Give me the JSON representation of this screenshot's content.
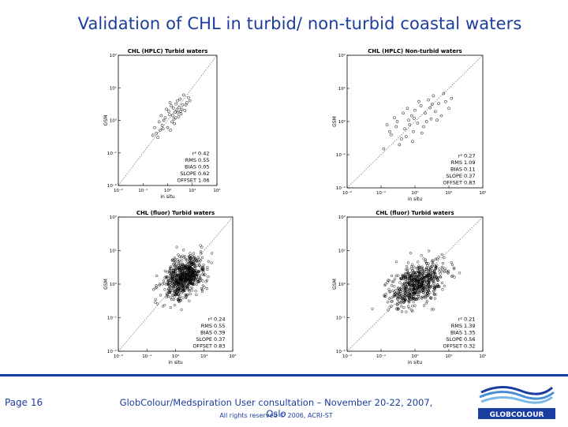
{
  "slide": {
    "title": "Validation of CHL in turbid/ non-turbid coastal waters"
  },
  "footer": {
    "page_label": "Page 16",
    "event": "GlobColour/Medspiration User consultation – November 20-22, 2007, Oslo",
    "rights": "All rights reserved © 2006, ACRI-ST",
    "logo_text": "GLOBCOLOUR",
    "brand_color": "#1c3da0"
  },
  "chart_data": [
    {
      "type": "scatter",
      "title": "CHL (HPLC) Turbid waters",
      "xlabel": "in situ",
      "ylabel": "GSM",
      "log_scale": true,
      "xlim": [
        0.01,
        100
      ],
      "ylim": [
        0.01,
        100
      ],
      "x_ticks": [
        "10⁻²",
        "10⁻¹",
        "10⁰",
        "10¹",
        "10²"
      ],
      "y_ticks": [
        "10⁻²",
        "10⁻¹",
        "10⁰",
        "10¹",
        "10²"
      ],
      "stats": [
        {
          "label": "r²",
          "value": "0.42"
        },
        {
          "label": "RMS",
          "value": "0.55"
        },
        {
          "label": "BIAS",
          "value": "0.05"
        },
        {
          "label": "SLOPE",
          "value": "0.62"
        },
        {
          "label": "OFFSET",
          "value": "1.06"
        }
      ],
      "points": [
        [
          1.2,
          1.5
        ],
        [
          2.0,
          1.8
        ],
        [
          1.5,
          0.9
        ],
        [
          3.0,
          2.5
        ],
        [
          0.8,
          1.2
        ],
        [
          2.5,
          4.0
        ],
        [
          1.0,
          0.6
        ],
        [
          4.0,
          3.0
        ],
        [
          0.9,
          2.2
        ],
        [
          1.8,
          1.1
        ],
        [
          3.5,
          1.6
        ],
        [
          0.6,
          0.7
        ],
        [
          2.2,
          3.2
        ],
        [
          5.0,
          2.0
        ],
        [
          1.4,
          2.8
        ],
        [
          0.7,
          1.0
        ],
        [
          2.8,
          1.3
        ],
        [
          1.1,
          1.9
        ],
        [
          6.0,
          3.5
        ],
        [
          0.5,
          0.5
        ],
        [
          1.6,
          1.4
        ],
        [
          2.4,
          2.1
        ],
        [
          0.35,
          0.4
        ],
        [
          3.2,
          4.5
        ],
        [
          1.9,
          0.8
        ],
        [
          0.45,
          0.9
        ],
        [
          7.0,
          5.0
        ],
        [
          1.3,
          0.5
        ],
        [
          0.3,
          0.6
        ],
        [
          2.6,
          1.7
        ],
        [
          4.5,
          6.0
        ],
        [
          0.25,
          0.35
        ],
        [
          1.7,
          2.4
        ],
        [
          3.8,
          2.2
        ],
        [
          0.55,
          1.4
        ],
        [
          0.4,
          0.3
        ],
        [
          8.0,
          4.0
        ],
        [
          2.1,
          1.2
        ],
        [
          0.65,
          0.55
        ],
        [
          5.5,
          3.0
        ],
        [
          1.25,
          3.5
        ],
        [
          3.3,
          1.9
        ]
      ],
      "one_to_one_line": true
    },
    {
      "type": "scatter",
      "title": "CHL (HPLC) Non-turbid waters",
      "xlabel": "in situ",
      "ylabel": "GSM",
      "log_scale": true,
      "xlim": [
        0.01,
        100
      ],
      "ylim": [
        0.01,
        100
      ],
      "x_ticks": [
        "10⁻²",
        "10⁻¹",
        "10⁰",
        "10¹",
        "10²"
      ],
      "y_ticks": [
        "10⁻²",
        "10⁻¹",
        "10⁰",
        "10¹",
        "10²"
      ],
      "stats": [
        {
          "label": "r²",
          "value": "0.27"
        },
        {
          "label": "RMS",
          "value": "1.09"
        },
        {
          "label": "BIAS",
          "value": "0.11"
        },
        {
          "label": "SLOPE",
          "value": "0.37"
        },
        {
          "label": "OFFSET",
          "value": "0.83"
        }
      ],
      "points": [
        [
          0.3,
          1.0
        ],
        [
          0.5,
          0.6
        ],
        [
          0.8,
          1.5
        ],
        [
          1.2,
          0.9
        ],
        [
          2.0,
          1.8
        ],
        [
          3.0,
          1.2
        ],
        [
          0.2,
          0.4
        ],
        [
          0.15,
          0.8
        ],
        [
          0.6,
          2.5
        ],
        [
          1.5,
          3.0
        ],
        [
          4.0,
          2.0
        ],
        [
          0.4,
          0.3
        ],
        [
          0.9,
          0.5
        ],
        [
          2.5,
          4.5
        ],
        [
          5.0,
          3.5
        ],
        [
          0.25,
          1.3
        ],
        [
          1.0,
          2.2
        ],
        [
          0.7,
          0.8
        ],
        [
          6.0,
          1.5
        ],
        [
          0.35,
          0.2
        ],
        [
          1.8,
          0.7
        ],
        [
          3.5,
          6.0
        ],
        [
          0.12,
          0.15
        ],
        [
          8.0,
          4.0
        ],
        [
          0.45,
          1.8
        ],
        [
          2.2,
          1.0
        ],
        [
          1.3,
          4.0
        ],
        [
          0.55,
          0.35
        ],
        [
          10.0,
          2.5
        ],
        [
          0.18,
          0.5
        ],
        [
          2.8,
          2.6
        ],
        [
          4.5,
          1.1
        ],
        [
          0.65,
          1.1
        ],
        [
          1.6,
          0.45
        ],
        [
          7.0,
          7.0
        ],
        [
          0.28,
          0.7
        ],
        [
          3.2,
          3.3
        ],
        [
          0.85,
          0.25
        ],
        [
          12.0,
          5.0
        ],
        [
          0.95,
          1.25
        ]
      ],
      "one_to_one_line": true
    },
    {
      "type": "scatter",
      "title": "CHL (fluor) Turbid waters",
      "xlabel": "in situ",
      "ylabel": "GSM",
      "log_scale": true,
      "xlim": [
        0.01,
        100
      ],
      "ylim": [
        0.01,
        100
      ],
      "x_ticks": [
        "10⁻²",
        "10⁻¹",
        "10⁰",
        "10¹",
        "10²"
      ],
      "y_ticks": [
        "10⁻²",
        "10⁻¹",
        "10⁰",
        "10¹",
        "10²"
      ],
      "stats": [
        {
          "label": "r²",
          "value": "0.24"
        },
        {
          "label": "RMS",
          "value": "0.55"
        },
        {
          "label": "BIAS",
          "value": "0.39"
        },
        {
          "label": "SLOPE",
          "value": "0.37"
        },
        {
          "label": "OFFSET",
          "value": "0.83"
        }
      ],
      "cloud": {
        "center": [
          2.0,
          1.6
        ],
        "spread_log10": [
          0.35,
          0.3
        ],
        "count": 700
      },
      "one_to_one_line": true
    },
    {
      "type": "scatter",
      "title": "CHL (fluor) Turbid waters",
      "xlabel": "in situ",
      "ylabel": "GSM",
      "log_scale": true,
      "xlim": [
        0.01,
        100
      ],
      "ylim": [
        0.01,
        100
      ],
      "x_ticks": [
        "10⁻²",
        "10⁻¹",
        "10⁰",
        "10¹",
        "10²"
      ],
      "y_ticks": [
        "10⁻²",
        "10⁻¹",
        "10⁰",
        "10¹",
        "10²"
      ],
      "stats": [
        {
          "label": "r²",
          "value": "0.21"
        },
        {
          "label": "RMS",
          "value": "1.39"
        },
        {
          "label": "BIAS",
          "value": "1.35"
        },
        {
          "label": "SLOPE",
          "value": "0.56"
        },
        {
          "label": "OFFSET",
          "value": "0.32"
        }
      ],
      "cloud": {
        "center": [
          1.2,
          1.0
        ],
        "spread_log10": [
          0.4,
          0.3
        ],
        "count": 650
      },
      "one_to_one_line": true
    }
  ]
}
